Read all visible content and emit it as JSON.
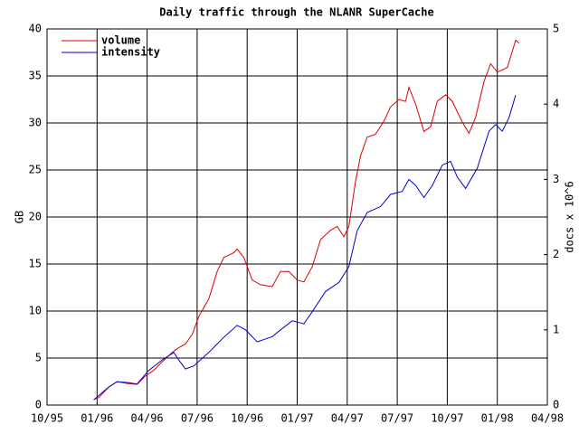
{
  "chart_data": {
    "type": "line",
    "title": "Daily traffic through the NLANR SuperCache",
    "ylabel": "GB",
    "y2label": "docs x 10^6",
    "xlim": [
      0,
      30
    ],
    "xticks": [
      {
        "value": 0,
        "label": "10/95"
      },
      {
        "value": 3,
        "label": "01/96"
      },
      {
        "value": 6,
        "label": "04/96"
      },
      {
        "value": 9,
        "label": "07/96"
      },
      {
        "value": 12,
        "label": "10/96"
      },
      {
        "value": 15,
        "label": "01/97"
      },
      {
        "value": 18,
        "label": "04/97"
      },
      {
        "value": 21,
        "label": "07/97"
      },
      {
        "value": 24,
        "label": "10/97"
      },
      {
        "value": 27,
        "label": "01/98"
      },
      {
        "value": 30,
        "label": "04/98"
      }
    ],
    "ylim": [
      0,
      40
    ],
    "yticks": [
      0,
      5,
      10,
      15,
      20,
      25,
      30,
      35,
      40
    ],
    "y2lim": [
      0,
      5
    ],
    "y2ticks": [
      0,
      1,
      2,
      3,
      4,
      5
    ],
    "grid": true,
    "legend": "upper-left",
    "series": [
      {
        "name": "volume",
        "color": "#e00000",
        "x": [
          2.8,
          3.1,
          3.7,
          4.2,
          4.8,
          5.4,
          5.9,
          6.4,
          6.9,
          7.5,
          7.9,
          8.3,
          8.7,
          9.1,
          9.7,
          10.2,
          10.6,
          11.2,
          11.4,
          11.8,
          12.3,
          12.8,
          13.5,
          14.0,
          14.5,
          15.0,
          15.4,
          15.9,
          16.4,
          17.0,
          17.4,
          17.8,
          18.1,
          18.5,
          18.8,
          19.2,
          19.7,
          20.2,
          20.6,
          21.1,
          21.5,
          21.7,
          22.1,
          22.6,
          23.0,
          23.4,
          23.9,
          24.3,
          24.9,
          25.3,
          25.7,
          26.2,
          26.6,
          27.0,
          27.6,
          28.1,
          28.3
        ],
        "values": [
          0.6,
          0.8,
          1.9,
          2.5,
          2.3,
          2.2,
          3.1,
          3.7,
          4.6,
          5.6,
          6.1,
          6.5,
          7.5,
          9.4,
          11.3,
          14.2,
          15.7,
          16.2,
          16.6,
          15.7,
          13.3,
          12.8,
          12.6,
          14.2,
          14.2,
          13.3,
          13.1,
          14.7,
          17.6,
          18.6,
          19.0,
          17.9,
          19.0,
          23.8,
          26.5,
          28.5,
          28.8,
          30.2,
          31.7,
          32.5,
          32.3,
          33.8,
          32.0,
          29.1,
          29.6,
          32.3,
          33.0,
          32.3,
          30.1,
          28.9,
          30.6,
          34.4,
          36.3,
          35.4,
          35.9,
          38.8,
          38.5
        ]
      },
      {
        "name": "intensity",
        "color": "#0000d0",
        "axis": "y2",
        "x": [
          2.8,
          3.7,
          4.2,
          4.8,
          5.4,
          6.1,
          6.9,
          7.6,
          7.9,
          8.3,
          8.8,
          9.7,
          10.5,
          11.4,
          11.9,
          12.6,
          13.5,
          14.0,
          14.7,
          15.4,
          15.9,
          16.7,
          17.5,
          18.1,
          18.6,
          19.2,
          20.0,
          20.6,
          21.3,
          21.7,
          22.1,
          22.6,
          23.1,
          23.7,
          24.2,
          24.6,
          25.1,
          25.8,
          26.5,
          26.9,
          27.3,
          27.7,
          28.1
        ],
        "values": [
          0.07,
          0.24,
          0.31,
          0.3,
          0.28,
          0.46,
          0.6,
          0.7,
          0.6,
          0.48,
          0.52,
          0.7,
          0.88,
          1.06,
          1.0,
          0.84,
          0.91,
          1.0,
          1.12,
          1.08,
          1.24,
          1.51,
          1.63,
          1.84,
          2.32,
          2.56,
          2.64,
          2.8,
          2.84,
          3.0,
          2.92,
          2.76,
          2.92,
          3.19,
          3.24,
          3.03,
          2.88,
          3.15,
          3.64,
          3.73,
          3.64,
          3.82,
          4.12
        ]
      }
    ]
  }
}
